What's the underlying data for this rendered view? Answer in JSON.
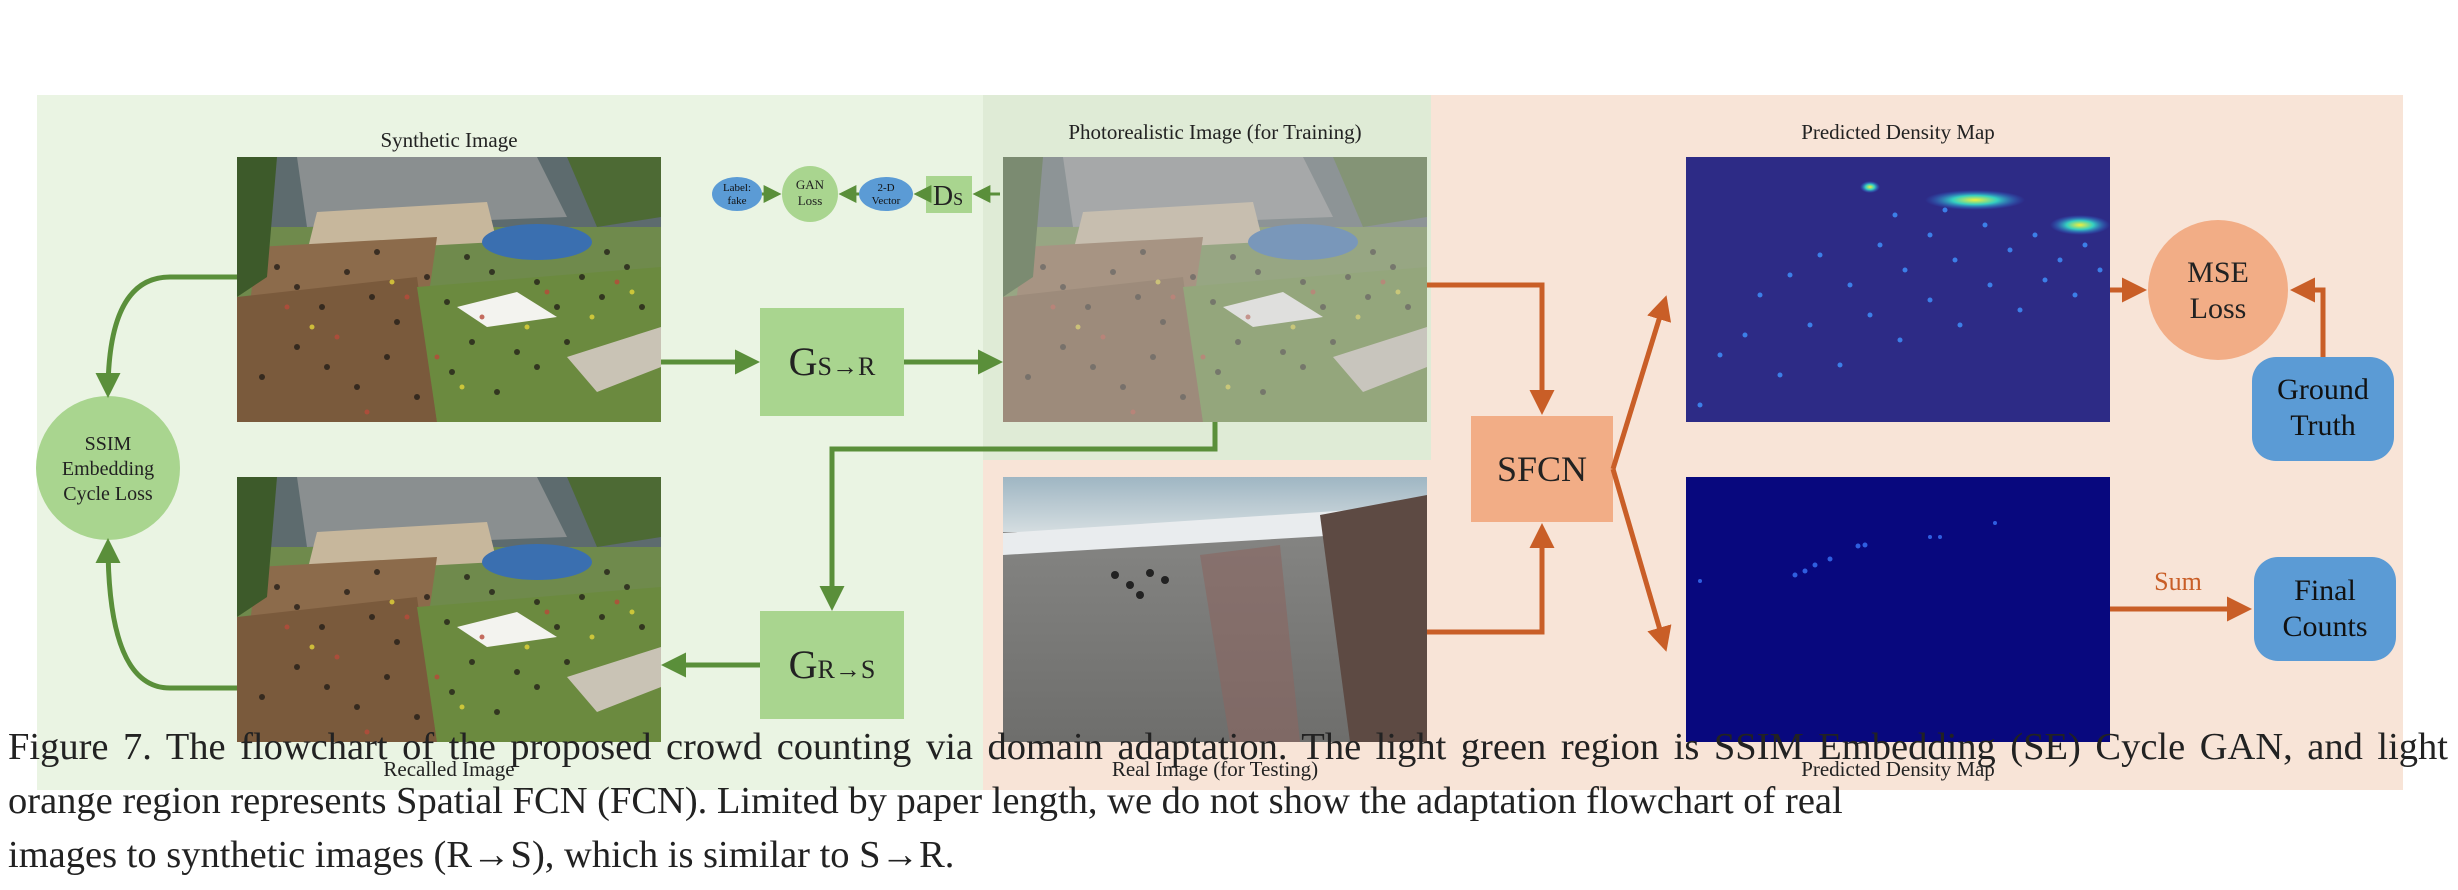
{
  "colors": {
    "green_region": "#eaf4e3",
    "green_region_dark": "#dfebd6",
    "orange_region": "#f8e4d7",
    "orange_region_band": "#f7ddcd",
    "green_box": "#a9d58f",
    "green_arrow": "#5a8f3a",
    "orange_box": "#f2ad86",
    "orange_arrow": "#c95e27",
    "blue_box": "#5b9bd5",
    "density_dark": "#2d2b86",
    "density_dark2": "#08087e"
  },
  "labels": {
    "synthetic_image": "Synthetic Image",
    "photorealistic_image": "Photorealistic Image (for Training)",
    "predicted_density_top": "Predicted Density Map",
    "recalled_image": "Recalled Image",
    "real_image": "Real Image (for Testing)",
    "predicted_density_bottom": "Predicted Density Map",
    "sum": "Sum"
  },
  "nodes": {
    "ssim_line1": "SSIM",
    "ssim_line2": "Embedding",
    "ssim_line3": "Cycle Loss",
    "g_sr_main": "G",
    "g_sr_sub": "S→R",
    "g_rs_main": "G",
    "g_rs_sub": "R→S",
    "ds_main": "D",
    "ds_sub": "S",
    "vec_line1": "2-D",
    "vec_line2": "Vector",
    "gan_line1": "GAN",
    "gan_line2": "Loss",
    "label_line1": "Label:",
    "label_line2": "fake",
    "sfcn": "SFCN",
    "mse_line1": "MSE",
    "mse_line2": "Loss",
    "gt_line1": "Ground",
    "gt_line2": "Truth",
    "fc_line1": "Final",
    "fc_line2": "Counts"
  },
  "caption": {
    "line1": "Figure 7. The flowchart of the proposed crowd counting via domain adaptation.  The light green region is SSIM Embedding (SE) Cycle",
    "line2": "GAN, and light orange region represents Spatial FCN (FCN). Limited by paper length, we do not show the adaptation flowchart of real",
    "line3": "images to synthetic images (R→S), which is similar to S→R."
  }
}
